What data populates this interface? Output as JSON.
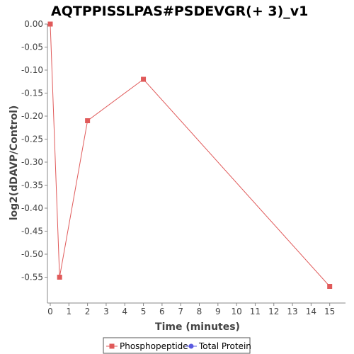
{
  "chart_data": {
    "type": "line",
    "title": "AQTPPISSLPAS#PSDEVGR(+ 3)_v1",
    "xlabel": "Time (minutes)",
    "ylabel": "log2(dDAVP/Control)",
    "xlim": [
      0,
      16
    ],
    "ylim": [
      -0.6,
      0.0
    ],
    "x_ticks": [
      0,
      1,
      2,
      3,
      4,
      5,
      6,
      7,
      8,
      9,
      10,
      11,
      12,
      13,
      14,
      15
    ],
    "y_ticks": [
      0.0,
      -0.05,
      -0.1,
      -0.15,
      -0.2,
      -0.25,
      -0.3,
      -0.35,
      -0.4,
      -0.45,
      -0.5,
      -0.55
    ],
    "y_tick_labels": [
      "0.00",
      "-0.05",
      "-0.10",
      "-0.15",
      "-0.20",
      "-0.25",
      "-0.30",
      "-0.35",
      "-0.40",
      "-0.45",
      "-0.50",
      "-0.55"
    ],
    "grid": false,
    "legend_position": "bottom",
    "series": [
      {
        "name": "Phosphopeptide",
        "color": "#e05a5a",
        "marker": "square",
        "x": [
          0,
          0.5,
          2,
          5,
          15
        ],
        "y": [
          0.0,
          -0.55,
          -0.21,
          -0.12,
          -0.57
        ]
      },
      {
        "name": "Total Protein",
        "color": "#5a5ae0",
        "marker": "circle",
        "x": [],
        "y": []
      }
    ]
  }
}
